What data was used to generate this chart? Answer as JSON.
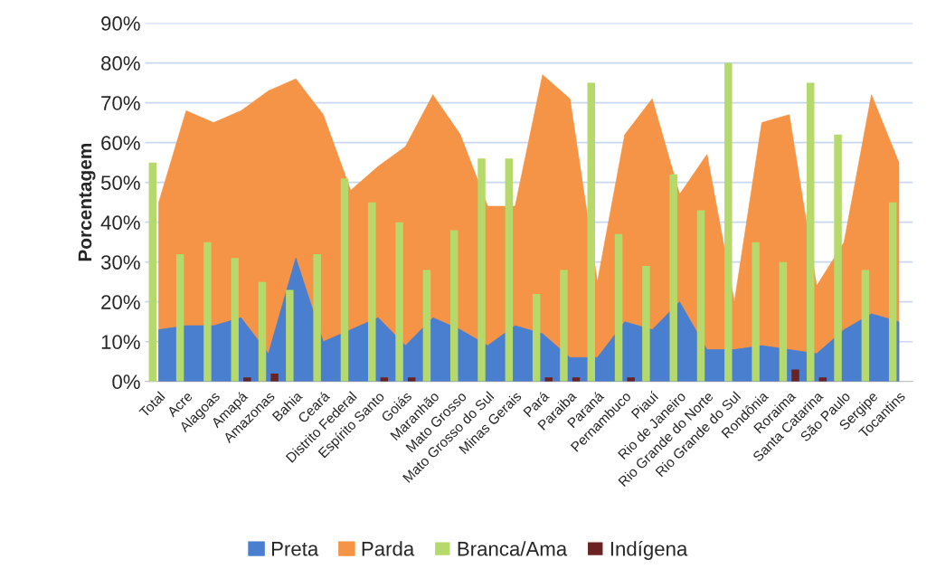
{
  "chart_data": {
    "type": "area",
    "ylabel": "Porcentagem",
    "categories": [
      "Total",
      "Acre",
      "Alagoas",
      "Amapá",
      "Amazonas",
      "Bahia",
      "Ceará",
      "Distrito Federal",
      "Espírito Santo",
      "Goiás",
      "Maranhão",
      "Mato Grosso",
      "Mato Grosso do Sul",
      "Minas Gerais",
      "Pará",
      "Paraiba",
      "Paraná",
      "Pernambuco",
      "Piauí",
      "Rio de Janeiro",
      "Rio Grande do Norte",
      "Rio Grande do Sul",
      "Rondônia",
      "Roraima",
      "Santa Catarina",
      "São Paulo",
      "Sergipe",
      "Tocantins"
    ],
    "series": [
      {
        "name": "Preta",
        "color": "#4a7fcf",
        "values": [
          13,
          14,
          14,
          16,
          7,
          31,
          10,
          13,
          16,
          9,
          16,
          13,
          9,
          14,
          12,
          6,
          6,
          15,
          13,
          20,
          8,
          8,
          9,
          8,
          7,
          13,
          17,
          15
        ]
      },
      {
        "name": "Parda",
        "color": "#f59446",
        "values": [
          45,
          68,
          65,
          68,
          73,
          76,
          67,
          48,
          54,
          59,
          72,
          62,
          44,
          44,
          77,
          71,
          25,
          62,
          71,
          47,
          57,
          20,
          65,
          67,
          24,
          35,
          72,
          55
        ]
      },
      {
        "name": "Branca/Ama",
        "type": "bar",
        "color": "#b5d96a",
        "values": [
          55,
          32,
          35,
          31,
          25,
          23,
          32,
          51,
          45,
          40,
          28,
          38,
          56,
          56,
          22,
          28,
          75,
          37,
          29,
          52,
          43,
          80,
          35,
          30,
          75,
          62,
          28,
          45
        ]
      },
      {
        "name": "Indígena",
        "type": "bar",
        "color": "#6b2222",
        "values": [
          null,
          null,
          null,
          1,
          2,
          null,
          null,
          null,
          1,
          1,
          null,
          null,
          null,
          null,
          1,
          1,
          null,
          1,
          null,
          null,
          null,
          null,
          null,
          3,
          1,
          null,
          null,
          null
        ]
      }
    ],
    "ylim": [
      0,
      90
    ],
    "yticks": [
      {
        "value": 0,
        "label": "0%"
      },
      {
        "value": 10,
        "label": "10%"
      },
      {
        "value": 20,
        "label": "20%"
      },
      {
        "value": 30,
        "label": "30%"
      },
      {
        "value": 40,
        "label": "40%"
      },
      {
        "value": 50,
        "label": "50%"
      },
      {
        "value": 60,
        "label": "60%"
      },
      {
        "value": 70,
        "label": "70%"
      },
      {
        "value": 80,
        "label": "80%"
      },
      {
        "value": 90,
        "label": "90%"
      }
    ],
    "grid": "y",
    "legend": "bottom"
  }
}
